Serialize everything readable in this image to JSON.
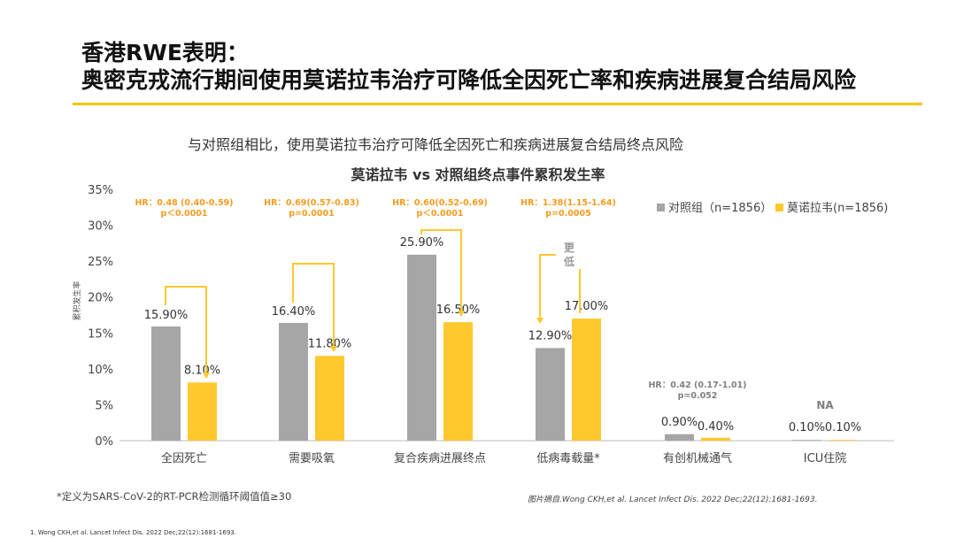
{
  "header": {
    "title_line1": "香港RWE表明：",
    "title_line2": "奥密克戎流行期间使用莫诺拉韦治疗可降低全因死亡率和疾病进展复合结局风险"
  },
  "subtitle": "与对照组相比，使用莫诺拉韦治疗可降低全因死亡和疾病进展复合结局终点风险",
  "footnote": "*定义为SARS-CoV-2的RT-PCR检测循环阈值值≥30",
  "source": "图片摘自.Wong CKH,et al. Lancet Infect Dis. 2022 Dec;22(12):1681-1693.",
  "reference": "1.      Wong CKH,et al. Lancet Infect Dis. 2022 Dec;22(12):1681-1693.",
  "chart_data": {
    "type": "bar",
    "title": "莫诺拉韦 vs 对照组终点事件累积发生率",
    "ylabel": "累积发生率",
    "ylim": [
      0,
      35
    ],
    "yticks": [
      "0%",
      "5%",
      "10%",
      "15%",
      "20%",
      "25%",
      "30%",
      "35%"
    ],
    "categories": [
      "全因死亡",
      "需要吸氧",
      "复合疾病进展终点",
      "低病毒载量*",
      "有创机械通气",
      "ICU住院"
    ],
    "series": [
      {
        "name": "对照组（n=1856）",
        "color": "#a6a6a6",
        "values": [
          15.9,
          16.4,
          25.9,
          12.9,
          0.9,
          0.1
        ],
        "labels": [
          "15.90%",
          "16.40%",
          "25.90%",
          "12.90%",
          "0.90%",
          "0.10%"
        ]
      },
      {
        "name": "莫诺拉韦(n=1856)",
        "color": "#ffc82c",
        "values": [
          8.1,
          11.8,
          16.5,
          17.0,
          0.4,
          0.1
        ],
        "labels": [
          "8.10%",
          "11.80%",
          "16.50%",
          "17.00%",
          "0.40%",
          "0.10%"
        ]
      }
    ],
    "annotations": [
      {
        "hr": "HR：0.48  (0.40-0.59)",
        "p": "p＜0.0001",
        "color": "#f59b1e"
      },
      {
        "hr": "HR：0.69(0.57-0.83)",
        "p": "p=0.0001",
        "color": "#f59b1e"
      },
      {
        "hr": "HR：0.60(0.52-0.69)",
        "p": "p＜0.0001",
        "color": "#f59b1e"
      },
      {
        "hr": "HR：1.38(1.15-1.64)",
        "p": "p=0.0005",
        "color": "#f59b1e"
      },
      {
        "hr": "HR：0.42  (0.17-1.01)",
        "p": "p=0.052",
        "color": "#7f7f7f"
      },
      {
        "hr": "NA",
        "p": "",
        "color": "#7f7f7f"
      }
    ],
    "bracket_note": "更低",
    "legend_position": "top-right",
    "grid": false
  }
}
